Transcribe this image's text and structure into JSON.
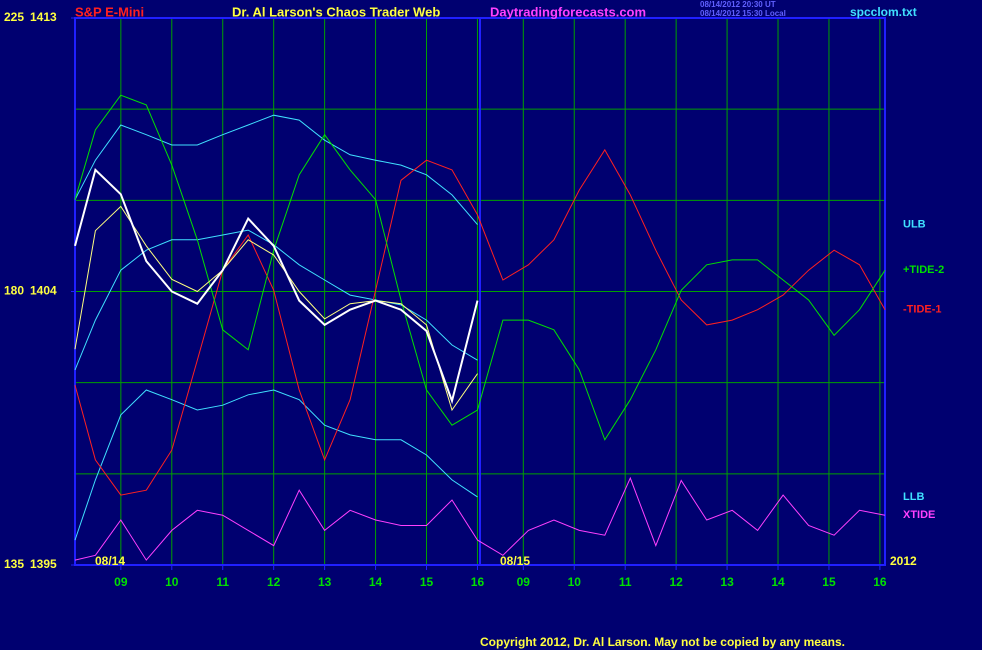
{
  "chart_data": {
    "type": "line",
    "title": "S&P E-Mini",
    "subtitle": "Dr. Al Larson's Chaos Trader Web",
    "site": "Daytradingforecasts.com",
    "timestamps": [
      "08/14/2012 20:30 UT",
      "08/14/2012 15:30 Local"
    ],
    "file": "spcclom.txt",
    "annotations": [
      "08/14",
      "08/15",
      "2012"
    ],
    "copyright": "Copyright 2012, Dr. Al Larson. May not be copied by any means.",
    "x": [
      8.1,
      8.5,
      9,
      9.5,
      10,
      10.5,
      11,
      11.5,
      12,
      12.5,
      13,
      13.5,
      14,
      14.5,
      15,
      15.5,
      16,
      16.5,
      17,
      17.5,
      18,
      18.5,
      19,
      19.5,
      20,
      20.5,
      21,
      21.5,
      22,
      22.5,
      23,
      23.5,
      24
    ],
    "xlim": [
      8.1,
      24.0
    ],
    "xticks": [
      {
        "value": 9,
        "label": "09"
      },
      10,
      11,
      12,
      13,
      14,
      15,
      16,
      {
        "value": 16.9,
        "label": "09"
      },
      {
        "value": 17.9,
        "label": "10"
      },
      {
        "value": 18.9,
        "label": "11"
      },
      {
        "value": 19.9,
        "label": "12"
      },
      {
        "value": 20.9,
        "label": "13"
      },
      {
        "value": 21.9,
        "label": "14"
      },
      {
        "value": 22.9,
        "label": "15"
      },
      {
        "value": 23.9,
        "label": "16"
      }
    ],
    "ylim": [
      135,
      225
    ],
    "yticks": [
      135,
      180,
      225
    ],
    "ygrid": [
      150,
      165,
      195,
      210
    ],
    "y2lim": [
      1395,
      1413
    ],
    "y2ticks": [
      1395,
      1404,
      1413
    ],
    "grid": true,
    "series": [
      {
        "color": "#40e0ff",
        "values": [
          167.1,
          175.3,
          183.5,
          186.8,
          188.5,
          188.5,
          189.3,
          190.1,
          187.7,
          184.4,
          181.9,
          179.4,
          178.6,
          177.8,
          175.3,
          171.2,
          168.7,
          null,
          null,
          null,
          null,
          null,
          null,
          null,
          null,
          null,
          null,
          null,
          null,
          null,
          null,
          null,
          null
        ]
      },
      {
        "name": "ULB",
        "color": "#40e0ff",
        "values": [
          195.1,
          201.6,
          207.4,
          205.8,
          204.1,
          204.1,
          205.8,
          207.4,
          209.0,
          208.2,
          204.9,
          202.5,
          201.6,
          200.8,
          199.2,
          195.9,
          191.0,
          null,
          null,
          null,
          null,
          null,
          null,
          null,
          null,
          null,
          null,
          null,
          null,
          null,
          null,
          null,
          null
        ]
      },
      {
        "name": "LLB",
        "color": "#40e0ff",
        "values": [
          139.1,
          149.0,
          159.7,
          163.8,
          162.2,
          160.5,
          161.3,
          163.0,
          163.8,
          162.2,
          158.0,
          156.4,
          155.6,
          155.6,
          153.1,
          149.0,
          146.2,
          null,
          null,
          null,
          null,
          null,
          null,
          null,
          null,
          null,
          null,
          null,
          null,
          null,
          null,
          null,
          null
        ]
      },
      {
        "name": "-TIDE-1",
        "color": "#ff2020",
        "values": [
          164.6,
          152.3,
          146.5,
          147.3,
          153.9,
          168.7,
          183.5,
          189.3,
          180.2,
          163.8,
          152.3,
          162.2,
          180.2,
          198.3,
          201.6,
          200.0,
          192.6,
          181.9,
          184.4,
          188.5,
          196.7,
          203.3,
          195.9,
          186.8,
          178.6,
          174.5,
          175.3,
          177.0,
          179.4,
          183.5,
          186.8,
          184.4,
          177.0
        ]
      },
      {
        "name": "+TIDE-2",
        "color": "#00e000",
        "values": [
          195.1,
          206.6,
          212.3,
          210.7,
          200.8,
          188.5,
          173.7,
          170.4,
          186.8,
          199.2,
          205.8,
          200.0,
          195.1,
          178.6,
          163.8,
          158.0,
          160.5,
          175.3,
          175.3,
          173.7,
          167.1,
          155.6,
          162.2,
          170.4,
          180.2,
          184.4,
          185.2,
          185.2,
          181.9,
          178.6,
          172.8,
          177.0,
          183.5
        ]
      },
      {
        "name": "XTIDE",
        "color": "#ff40ff",
        "values": [
          135.8,
          136.6,
          142.4,
          135.8,
          140.7,
          144.0,
          143.2,
          140.7,
          138.2,
          147.3,
          140.7,
          144.0,
          142.4,
          141.5,
          141.5,
          145.7,
          139.1,
          136.6,
          140.7,
          142.4,
          140.7,
          139.9,
          149.3,
          138.2,
          148.9,
          142.4,
          144.0,
          140.7,
          146.5,
          141.5,
          139.9,
          144.0,
          143.2
        ]
      },
      {
        "color": "#ffff80",
        "axis": "y2",
        "values": [
          1402.1,
          1406.0,
          1406.8,
          1405.5,
          1404.4,
          1404.0,
          1404.7,
          1405.7,
          1405.2,
          1404.0,
          1403.1,
          1403.6,
          1403.7,
          1403.6,
          1402.9,
          1400.1,
          1401.3,
          null,
          null,
          null,
          null,
          null,
          null,
          null,
          null,
          null,
          null,
          null,
          null,
          null,
          null,
          null,
          null
        ]
      },
      {
        "color": "#ffffff",
        "axis": "y2",
        "values": [
          1405.5,
          1408.0,
          1407.2,
          1405.0,
          1404.0,
          1403.6,
          1404.7,
          1406.4,
          1405.5,
          1403.7,
          1402.9,
          1403.4,
          1403.7,
          1403.4,
          1402.7,
          1400.4,
          1403.7,
          null,
          null,
          null,
          null,
          null,
          null,
          null,
          null,
          null,
          null,
          null,
          null,
          null,
          null,
          null,
          null
        ]
      }
    ]
  }
}
